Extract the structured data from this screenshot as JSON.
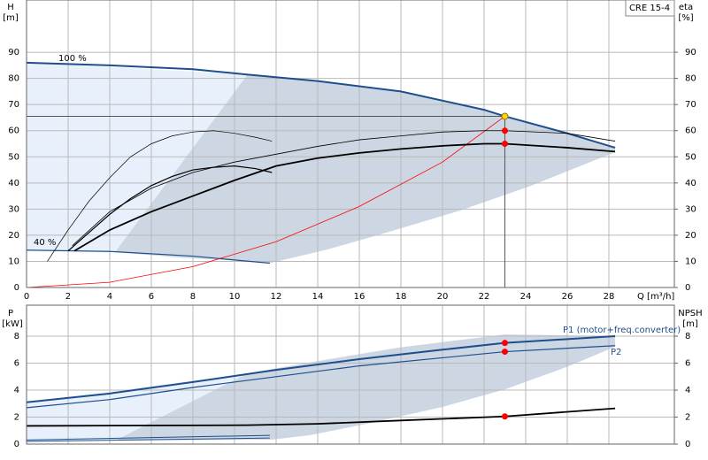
{
  "chart_data": [
    {
      "type": "line",
      "model_label": "CRE 15-4",
      "y_label_lines": [
        "H",
        "[m]"
      ],
      "y2_label_lines": [
        "eta",
        "[%]"
      ],
      "x_label": "Q [m³/h]",
      "xlim": [
        0,
        31.15
      ],
      "xticks": [
        0,
        2,
        4,
        6,
        8,
        10,
        12,
        14,
        16,
        18,
        20,
        22,
        24,
        26,
        28
      ],
      "ylim": [
        0,
        110
      ],
      "yticks": [
        0,
        10,
        20,
        30,
        40,
        50,
        60,
        70,
        80,
        90
      ],
      "y2lim": [
        0,
        110
      ],
      "y2ticks": [
        0,
        10,
        20,
        30,
        40,
        50,
        60,
        70,
        80,
        90
      ],
      "grid": true,
      "series": [
        {
          "color": "#1f4e8c",
          "line_width": 2,
          "x": [
            0,
            4,
            8,
            10.6,
            14,
            18,
            22,
            23,
            26,
            28.3
          ],
          "values": [
            86,
            85,
            83.5,
            81.5,
            79,
            75,
            68,
            65.5,
            59,
            53.5
          ]
        },
        {
          "color": "#1f4e8c",
          "line_width": 1.2,
          "x": [
            0,
            4,
            8,
            11.7
          ],
          "values": [
            14.3,
            13.8,
            12,
            9.3
          ]
        },
        {
          "color": "#ff0000",
          "line_width": 0.8,
          "x": [
            0,
            4,
            8,
            12,
            16,
            20,
            23
          ],
          "values": [
            0,
            2,
            8,
            17.5,
            31,
            48,
            65.5
          ]
        },
        {
          "color": "#000000",
          "line_width": 0.7,
          "x": [
            1,
            2,
            3,
            4,
            5,
            6,
            7,
            8,
            9,
            10,
            11,
            11.8
          ],
          "values": [
            10,
            22,
            33,
            42,
            50,
            55,
            58,
            59.5,
            60,
            59,
            57.5,
            56
          ]
        },
        {
          "color": "#000000",
          "line_width": 1.2,
          "x": [
            2,
            3,
            4,
            5,
            6,
            7,
            8,
            9,
            10,
            11,
            11.8
          ],
          "values": [
            14,
            21,
            28,
            34,
            39,
            42.5,
            45,
            46,
            46.5,
            45.5,
            44
          ]
        },
        {
          "color": "#000000",
          "line_width": 0.8,
          "x": [
            2.2,
            4,
            6,
            8,
            10,
            12,
            14,
            16,
            18,
            20,
            22,
            23,
            26,
            28.3
          ],
          "values": [
            16,
            29,
            38,
            44,
            48,
            51,
            54,
            56.5,
            58,
            59.5,
            60,
            60,
            59,
            56
          ]
        },
        {
          "color": "#000000",
          "line_width": 1.8,
          "x": [
            2.3,
            4,
            6,
            8,
            10,
            12,
            14,
            16,
            18,
            20,
            22,
            23,
            26,
            28.3
          ],
          "values": [
            14,
            22,
            29,
            35,
            41,
            46.5,
            49.5,
            51.5,
            53,
            54.2,
            55,
            55,
            53.5,
            52
          ]
        }
      ],
      "markers": [
        {
          "x": 23,
          "y": 65.5,
          "color": "#ffd700"
        },
        {
          "x": 23,
          "y": 60,
          "color": "#ff0000"
        },
        {
          "x": 23,
          "y": 55,
          "color": "#ff0000"
        }
      ],
      "annotations": [
        "100 %",
        "40 %"
      ]
    },
    {
      "type": "line",
      "y_label_lines": [
        "P",
        "[kW]"
      ],
      "y2_label_lines": [
        "NPSH",
        "[m]"
      ],
      "xlim": [
        0,
        31.15
      ],
      "xticks": [
        0,
        2,
        4,
        6,
        8,
        10,
        12,
        14,
        16,
        18,
        20,
        22,
        24,
        26,
        28
      ],
      "ylim": [
        0,
        10.3
      ],
      "yticks": [
        0,
        2,
        4,
        6,
        8
      ],
      "y2lim": [
        0,
        10.3
      ],
      "y2ticks": [
        0,
        2,
        4,
        6,
        8
      ],
      "grid": true,
      "series": [
        {
          "name": "P1 (motor+freq.converter)",
          "color": "#1f4e8c",
          "line_width": 2,
          "x": [
            0,
            4,
            8,
            12,
            16,
            20,
            23,
            28.3
          ],
          "values": [
            3.1,
            3.75,
            4.6,
            5.5,
            6.3,
            7.0,
            7.5,
            8.0
          ]
        },
        {
          "name": "P2",
          "color": "#1f4e8c",
          "line_width": 1.2,
          "x": [
            0,
            4,
            8,
            12,
            16,
            20,
            23,
            28.3
          ],
          "values": [
            2.7,
            3.3,
            4.2,
            5.0,
            5.8,
            6.4,
            6.85,
            7.3
          ]
        },
        {
          "color": "#000000",
          "line_width": 1.8,
          "x": [
            0,
            10.6,
            14,
            18,
            23,
            28.3
          ],
          "values": [
            1.35,
            1.4,
            1.5,
            1.75,
            2.05,
            2.65
          ]
        },
        {
          "color": "#1f4e8c",
          "line_width": 1,
          "x": [
            0,
            11.7
          ],
          "values": [
            0.2,
            0.45
          ]
        },
        {
          "color": "#1f4e8c",
          "line_width": 1,
          "x": [
            0,
            11.7
          ],
          "values": [
            0.3,
            0.65
          ]
        }
      ],
      "markers": [
        {
          "x": 23,
          "y": 7.5,
          "color": "#ff0000"
        },
        {
          "x": 23,
          "y": 6.85,
          "color": "#ff0000"
        },
        {
          "x": 23,
          "y": 2.05,
          "color": "#ff0000"
        }
      ]
    }
  ]
}
